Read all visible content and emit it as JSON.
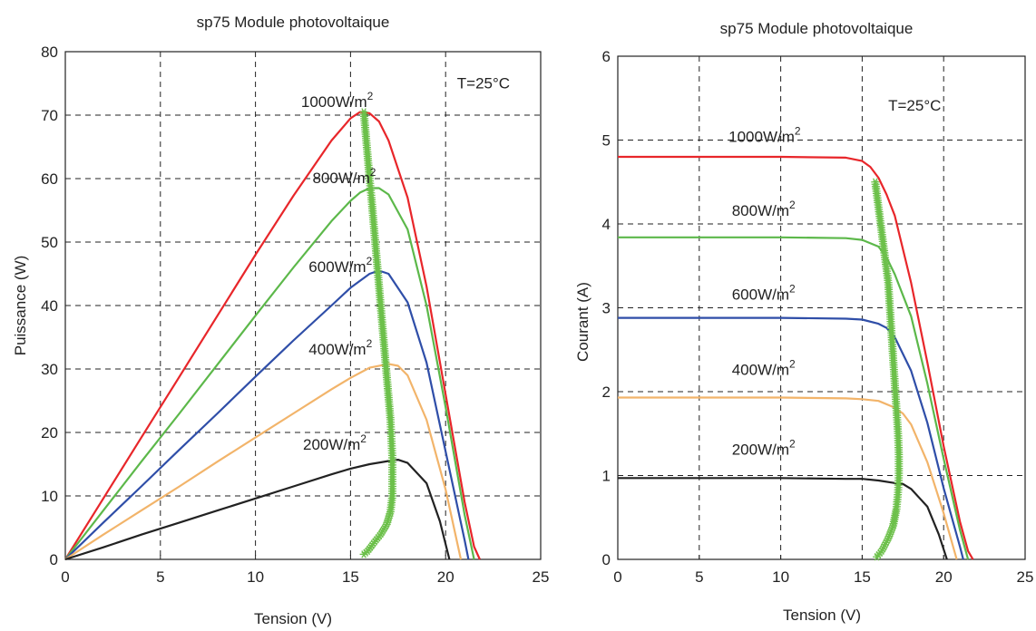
{
  "chart_data": [
    {
      "type": "line",
      "title": "sp75 Module photovoltaique",
      "xlabel": "Tension (V)",
      "ylabel": "Puissance (W)",
      "xlim": [
        0,
        25
      ],
      "ylim": [
        0,
        80
      ],
      "xticks": [
        "0",
        "5",
        "10",
        "15",
        "20",
        "25"
      ],
      "yticks": [
        "0",
        "10",
        "20",
        "30",
        "40",
        "50",
        "60",
        "70",
        "80"
      ],
      "grid": true,
      "annotations": [
        {
          "text": "T=25°C",
          "x": 20.6,
          "y": 74.2
        },
        {
          "text": "1000W/m",
          "sup": "2",
          "x": 12.4,
          "y": 71.3
        },
        {
          "text": "800W/m",
          "sup": "2",
          "x": 13.0,
          "y": 59.3
        },
        {
          "text": "600W/m",
          "sup": "2",
          "x": 12.8,
          "y": 45.3
        },
        {
          "text": "400W/m",
          "sup": "2",
          "x": 12.8,
          "y": 32.3
        },
        {
          "text": "200W/m",
          "sup": "2",
          "x": 12.5,
          "y": 17.3
        }
      ],
      "series": [
        {
          "color": "#e8262a",
          "x": [
            0,
            2,
            4,
            6,
            8,
            10,
            12,
            14,
            15,
            15.5,
            16,
            16.5,
            17,
            18,
            19,
            20,
            21,
            21.5,
            21.8
          ],
          "y": [
            0,
            9.6,
            19.2,
            28.8,
            38.4,
            48,
            57.3,
            66,
            69.5,
            70.5,
            70.3,
            69,
            66,
            57,
            43,
            26,
            9,
            2,
            0
          ]
        },
        {
          "color": "#5cb84a",
          "x": [
            0,
            2,
            4,
            6,
            8,
            10,
            12,
            14,
            15,
            15.5,
            16,
            16.5,
            17,
            18,
            19,
            20,
            21,
            21.5
          ],
          "y": [
            0,
            7.7,
            15.4,
            23,
            30.7,
            38.4,
            46,
            53.3,
            56.5,
            57.8,
            58.5,
            58.5,
            57.5,
            52,
            40,
            24,
            7,
            0
          ]
        },
        {
          "color": "#2f4ea8",
          "x": [
            0,
            2,
            4,
            6,
            8,
            10,
            12,
            14,
            15,
            16,
            16.5,
            17,
            18,
            19,
            20,
            21,
            21.2
          ],
          "y": [
            0,
            5.8,
            11.5,
            17.3,
            23,
            28.8,
            34.5,
            40,
            42.8,
            45,
            45.5,
            45,
            40.5,
            31,
            17,
            3,
            0
          ]
        },
        {
          "color": "#f2b46a",
          "x": [
            0,
            2,
            4,
            6,
            8,
            10,
            12,
            14,
            15,
            16,
            17,
            17.5,
            18,
            19,
            20,
            20.8
          ],
          "y": [
            0,
            3.9,
            7.7,
            11.5,
            15.4,
            19.2,
            23,
            26.8,
            28.6,
            30.2,
            30.8,
            30.5,
            29,
            22,
            11,
            0
          ]
        },
        {
          "color": "#222222",
          "x": [
            0,
            2,
            4,
            6,
            8,
            10,
            12,
            14,
            15,
            16,
            17,
            17.5,
            18,
            19,
            19.7,
            20.2
          ],
          "y": [
            0,
            1.9,
            3.9,
            5.8,
            7.7,
            9.6,
            11.5,
            13.4,
            14.3,
            15,
            15.5,
            15.7,
            15.2,
            12,
            6,
            0
          ]
        },
        {
          "color": "#6cc04a",
          "marker": "star",
          "x": [
            15.7,
            15.8,
            15.9,
            16.0,
            16.1,
            16.2,
            16.3,
            16.4,
            16.5,
            16.6,
            16.7,
            16.8,
            16.9,
            17.0,
            17.1,
            17.15,
            17.2,
            17.2,
            17.2,
            17.1,
            16.9,
            16.6,
            16.2,
            15.9,
            15.7
          ],
          "y": [
            70.5,
            67,
            63.5,
            60,
            57,
            53.5,
            50,
            46.5,
            43,
            39.5,
            36,
            32.5,
            29,
            25.5,
            22,
            19,
            16,
            13,
            10,
            7.5,
            5.5,
            4,
            2.5,
            1.3,
            0.8
          ]
        }
      ]
    },
    {
      "type": "line",
      "title": "sp75 Module photovoltaique",
      "xlabel": "Tension (V)",
      "ylabel": "Courant  (A)",
      "xlim": [
        0,
        25
      ],
      "ylim": [
        0,
        6
      ],
      "xticks": [
        "0",
        "5",
        "10",
        "15",
        "20",
        "25"
      ],
      "yticks": [
        "0",
        "1",
        "2",
        "3",
        "4",
        "5",
        "6"
      ],
      "grid": true,
      "annotations": [
        {
          "text": "T=25°C",
          "x": 16.6,
          "y": 5.35
        },
        {
          "text": "1000W/m",
          "sup": "2",
          "x": 6.8,
          "y": 4.98
        },
        {
          "text": "800W/m",
          "sup": "2",
          "x": 7.0,
          "y": 4.1
        },
        {
          "text": "600W/m",
          "sup": "2",
          "x": 7.0,
          "y": 3.1
        },
        {
          "text": "400W/m",
          "sup": "2",
          "x": 7.0,
          "y": 2.2
        },
        {
          "text": "200W/m",
          "sup": "2",
          "x": 7.0,
          "y": 1.25
        }
      ],
      "series": [
        {
          "color": "#e8262a",
          "x": [
            0,
            5,
            10,
            14,
            15,
            15.5,
            16,
            16.5,
            17,
            18,
            19,
            20,
            21,
            21.5,
            21.8
          ],
          "y": [
            4.8,
            4.8,
            4.8,
            4.79,
            4.75,
            4.68,
            4.55,
            4.35,
            4.1,
            3.3,
            2.35,
            1.35,
            0.45,
            0.1,
            0
          ]
        },
        {
          "color": "#5cb84a",
          "x": [
            0,
            5,
            10,
            14,
            15,
            16,
            16.5,
            17,
            18,
            19,
            20,
            21,
            21.5
          ],
          "y": [
            3.84,
            3.84,
            3.84,
            3.83,
            3.81,
            3.73,
            3.6,
            3.4,
            2.9,
            2.1,
            1.2,
            0.35,
            0
          ]
        },
        {
          "color": "#2f4ea8",
          "x": [
            0,
            5,
            10,
            14,
            15,
            16,
            16.5,
            17,
            18,
            19,
            20,
            21,
            21.2
          ],
          "y": [
            2.88,
            2.88,
            2.88,
            2.87,
            2.86,
            2.81,
            2.76,
            2.65,
            2.25,
            1.63,
            0.85,
            0.15,
            0
          ]
        },
        {
          "color": "#f2b46a",
          "x": [
            0,
            5,
            10,
            14,
            15,
            16,
            17,
            17.5,
            18,
            19,
            20,
            20.8
          ],
          "y": [
            1.93,
            1.93,
            1.93,
            1.92,
            1.91,
            1.89,
            1.81,
            1.74,
            1.61,
            1.16,
            0.55,
            0
          ]
        },
        {
          "color": "#222222",
          "x": [
            0,
            5,
            10,
            14,
            15,
            16,
            17,
            17.5,
            18,
            19,
            19.7,
            20.2
          ],
          "y": [
            0.97,
            0.97,
            0.97,
            0.96,
            0.96,
            0.94,
            0.91,
            0.9,
            0.84,
            0.63,
            0.3,
            0
          ]
        },
        {
          "color": "#6cc04a",
          "marker": "star",
          "x": [
            15.8,
            16.0,
            16.2,
            16.4,
            16.6,
            16.7,
            16.8,
            16.9,
            17.0,
            17.1,
            17.2,
            17.25,
            17.25,
            17.2,
            17.1,
            16.9,
            16.6,
            16.2,
            15.9
          ],
          "y": [
            4.5,
            4.2,
            3.9,
            3.6,
            3.3,
            3.0,
            2.7,
            2.4,
            2.1,
            1.8,
            1.5,
            1.25,
            1.0,
            0.8,
            0.6,
            0.4,
            0.25,
            0.1,
            0.03
          ]
        }
      ]
    }
  ]
}
